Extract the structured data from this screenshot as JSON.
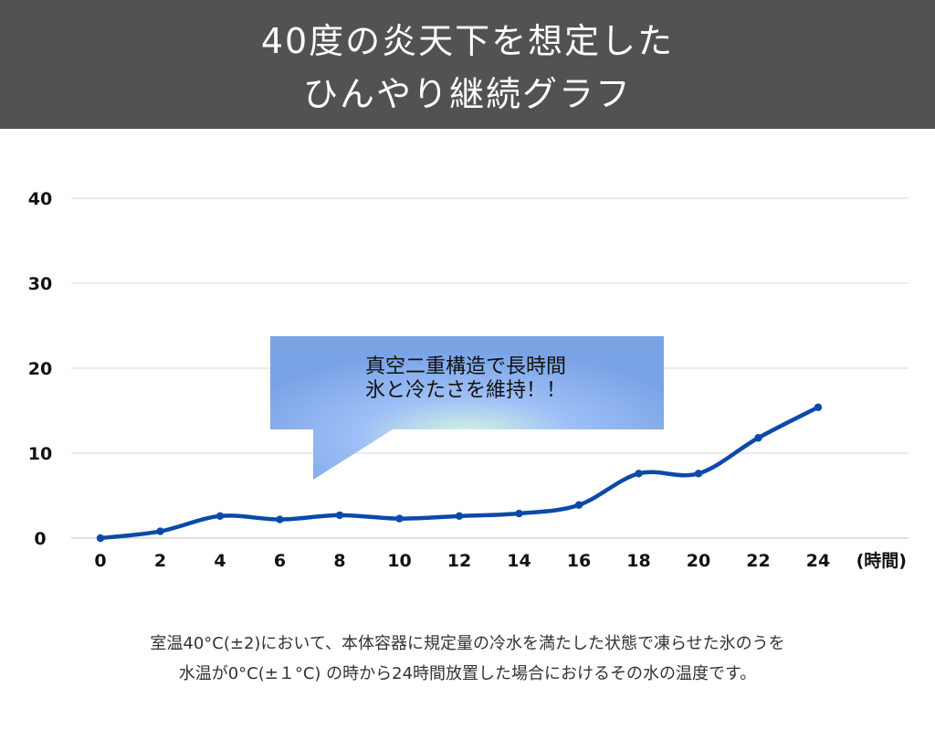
{
  "header": {
    "title_line1": "40度の炎天下を想定した",
    "title_line2": "ひんやり継続グラフ"
  },
  "callout": {
    "line1": "真空二重構造で長時間",
    "line2": "氷と冷たさを維持！！"
  },
  "caption": {
    "line1": "室温40°C(±2)において、本体容器に規定量の冷水を満たした状態で凍らせた氷のうを",
    "line2": "水温が0°C(±１°C) の時から24時間放置した場合におけるその水の温度です。"
  },
  "colors": {
    "header_bg": "#525252",
    "line": "#0b4aa8",
    "grid": "#d9d9d9"
  },
  "chart_data": {
    "type": "line",
    "x": [
      0,
      2,
      4,
      6,
      8,
      10,
      12,
      14,
      16,
      18,
      20,
      22,
      24
    ],
    "x_tick_labels": [
      "0",
      "2",
      "4",
      "6",
      "8",
      "10",
      "12",
      "14",
      "16",
      "18",
      "20",
      "22",
      "24"
    ],
    "xlabel": "(時間)",
    "y_ticks": [
      0,
      10,
      20,
      30,
      40
    ],
    "y_tick_labels": [
      "0",
      "10",
      "20",
      "30",
      "40"
    ],
    "ylim": [
      0,
      40
    ],
    "series": [
      {
        "values": [
          0,
          0.8,
          2.6,
          2.2,
          2.7,
          2.3,
          2.6,
          2.9,
          3.9,
          7.6,
          7.6,
          11.8,
          15.4
        ]
      }
    ],
    "grid": true,
    "legend": "none"
  }
}
